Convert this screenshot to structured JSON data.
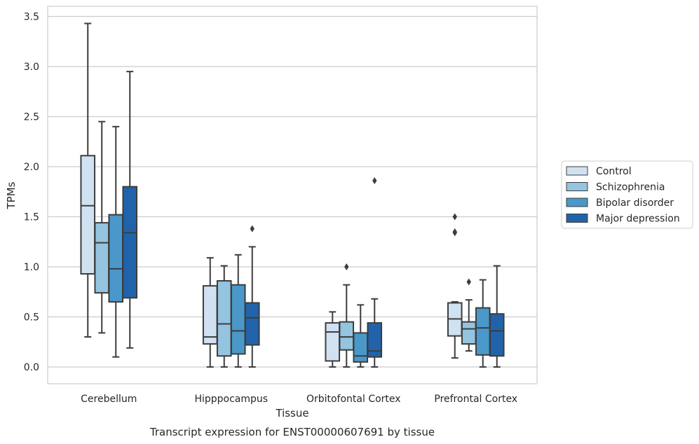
{
  "chart_data": {
    "type": "boxplot",
    "caption": "Transcript expression for ENST00000607691 by tissue",
    "xlabel": "Tissue",
    "ylabel": "TPMs",
    "ylim": [
      -0.17,
      3.6
    ],
    "yticks": [
      "0.0",
      "0.5",
      "1.0",
      "1.5",
      "2.0",
      "2.5",
      "3.0",
      "3.5"
    ],
    "ytick_values": [
      0,
      0.5,
      1.0,
      1.5,
      2.0,
      2.5,
      3.0,
      3.5
    ],
    "grid": "horizontal",
    "legend_position": "right",
    "categories": [
      "Cerebellum",
      "Hipppocampus",
      "Orbitofontal Cortex",
      "Prefrontal Cortex"
    ],
    "series": [
      {
        "name": "Control",
        "color": "#d0e1f2",
        "boxes": [
          {
            "whislo": 0.3,
            "q1": 0.93,
            "med": 1.61,
            "q3": 2.11,
            "whishi": 3.43,
            "fliers": []
          },
          {
            "whislo": 0.0,
            "q1": 0.23,
            "med": 0.3,
            "q3": 0.81,
            "whishi": 1.09,
            "fliers": []
          },
          {
            "whislo": 0.0,
            "q1": 0.06,
            "med": 0.35,
            "q3": 0.44,
            "whishi": 0.55,
            "fliers": []
          },
          {
            "whislo": 0.09,
            "q1": 0.31,
            "med": 0.48,
            "q3": 0.64,
            "whishi": 0.65,
            "fliers": [
              1.34,
              1.35,
              1.5
            ]
          }
        ]
      },
      {
        "name": "Schizophrenia",
        "color": "#94c4df",
        "boxes": [
          {
            "whislo": 0.34,
            "q1": 0.74,
            "med": 1.24,
            "q3": 1.44,
            "whishi": 2.45,
            "fliers": []
          },
          {
            "whislo": 0.0,
            "q1": 0.11,
            "med": 0.43,
            "q3": 0.86,
            "whishi": 1.01,
            "fliers": []
          },
          {
            "whislo": 0.0,
            "q1": 0.17,
            "med": 0.3,
            "q3": 0.45,
            "whishi": 0.82,
            "fliers": [
              1.0
            ]
          },
          {
            "whislo": 0.16,
            "q1": 0.23,
            "med": 0.38,
            "q3": 0.45,
            "whishi": 0.67,
            "fliers": [
              0.85
            ]
          }
        ]
      },
      {
        "name": "Bipolar disorder",
        "color": "#4a98c9",
        "boxes": [
          {
            "whislo": 0.1,
            "q1": 0.65,
            "med": 0.98,
            "q3": 1.52,
            "whishi": 2.4,
            "fliers": []
          },
          {
            "whislo": 0.0,
            "q1": 0.13,
            "med": 0.36,
            "q3": 0.82,
            "whishi": 1.12,
            "fliers": []
          },
          {
            "whislo": 0.0,
            "q1": 0.05,
            "med": 0.11,
            "q3": 0.34,
            "whishi": 0.62,
            "fliers": []
          },
          {
            "whislo": 0.0,
            "q1": 0.12,
            "med": 0.39,
            "q3": 0.59,
            "whishi": 0.87,
            "fliers": []
          }
        ]
      },
      {
        "name": "Major depression",
        "color": "#2163aa",
        "boxes": [
          {
            "whislo": 0.19,
            "q1": 0.69,
            "med": 1.34,
            "q3": 1.8,
            "whishi": 2.95,
            "fliers": []
          },
          {
            "whislo": 0.0,
            "q1": 0.22,
            "med": 0.49,
            "q3": 0.64,
            "whishi": 1.2,
            "fliers": [
              1.38
            ]
          },
          {
            "whislo": 0.0,
            "q1": 0.1,
            "med": 0.16,
            "q3": 0.44,
            "whishi": 0.68,
            "fliers": [
              1.86
            ]
          },
          {
            "whislo": 0.0,
            "q1": 0.11,
            "med": 0.36,
            "q3": 0.53,
            "whishi": 1.01,
            "fliers": []
          }
        ]
      }
    ]
  }
}
